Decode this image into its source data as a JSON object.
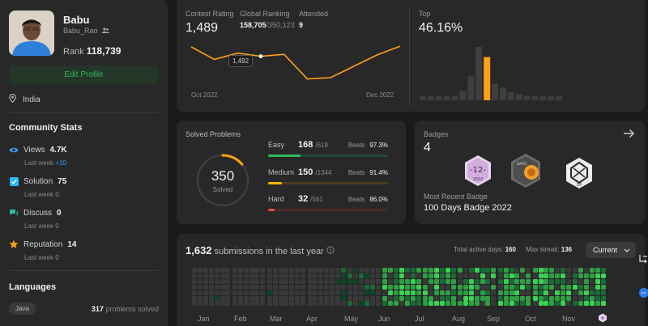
{
  "profile": {
    "name": "Babu",
    "username": "Babu_Rao",
    "rank_label": "Rank",
    "rank_value": "118,739",
    "edit_label": "Edit Profile",
    "location": "India"
  },
  "community": {
    "title": "Community Stats",
    "items": [
      {
        "label": "Views",
        "value": "4.7K",
        "sub": "Last week",
        "delta": "+10"
      },
      {
        "label": "Solution",
        "value": "75",
        "sub": "Last week",
        "delta": "0"
      },
      {
        "label": "Discuss",
        "value": "0",
        "sub": "Last week",
        "delta": "0"
      },
      {
        "label": "Reputation",
        "value": "14",
        "sub": "Last week",
        "delta": "0"
      }
    ]
  },
  "languages": {
    "title": "Languages",
    "items": [
      {
        "name": "Java",
        "count": "317",
        "suffix": "problems solved"
      }
    ]
  },
  "contest": {
    "rating_label": "Contest Rating",
    "rating": "1,489",
    "global_label": "Global Ranking",
    "global_rank": "158,705",
    "global_total": "/350,123",
    "attended_label": "Attended",
    "attended": "9",
    "tooltip": "1,492",
    "start_date": "Oct 2022",
    "end_date": "Dec 2022",
    "top_label": "Top",
    "top_value": "46.16%",
    "line_points": [
      1507,
      1487,
      1497,
      1492,
      1495,
      1456,
      1458,
      1476,
      1494,
      1508
    ],
    "line_ylim": [
      1440,
      1530
    ],
    "distribution": [
      1,
      1,
      1,
      2,
      4,
      10,
      26,
      58,
      47,
      18,
      14,
      9,
      7,
      5,
      4,
      3,
      2,
      2
    ],
    "highlight_index": 8
  },
  "solved": {
    "title": "Solved Problems",
    "total": "350",
    "total_label": "Solved",
    "easy": {
      "label": "Easy",
      "count": "168",
      "total": "/618",
      "beats_label": "Beats",
      "beats": "97.3%",
      "fraction": 0.272,
      "color": "#2cbb5d"
    },
    "medium": {
      "label": "Medium",
      "count": "150",
      "total": "/1344",
      "beats_label": "Beats",
      "beats": "91.4%",
      "fraction": 0.112,
      "color": "#ffb800"
    },
    "hard": {
      "label": "Hard",
      "count": "32",
      "total": "/561",
      "beats_label": "Beats",
      "beats": "86.0%",
      "fraction": 0.057,
      "color": "#ef4743"
    },
    "ring_fraction": 0.139
  },
  "badges": {
    "label": "Badges",
    "count": "4",
    "recent_label": "Most Recent Badge",
    "recent_name": "100 Days Badge 2022",
    "icons": [
      {
        "name": "december-2022-badge",
        "text": "-12-",
        "year": "2022"
      },
      {
        "name": "days-badge",
        "text": "DAYS"
      },
      {
        "name": "dp-badge",
        "text": "DP"
      }
    ]
  },
  "heatmap": {
    "count": "1,632",
    "title_suffix": "submissions in the last year",
    "active_label": "Total active days:",
    "active_days": "160",
    "streak_label": "Max streak:",
    "max_streak": "136",
    "select_value": "Current",
    "months": [
      "Jan",
      "Feb",
      "Mar",
      "Apr",
      "May",
      "Jun",
      "Jul",
      "Aug",
      "Sep",
      "Oct",
      "Nov"
    ],
    "intensity_seed": 7
  },
  "colors": {
    "accent_green": "#2cbb5d",
    "accent_orange": "#ffa116",
    "card": "#282828"
  }
}
